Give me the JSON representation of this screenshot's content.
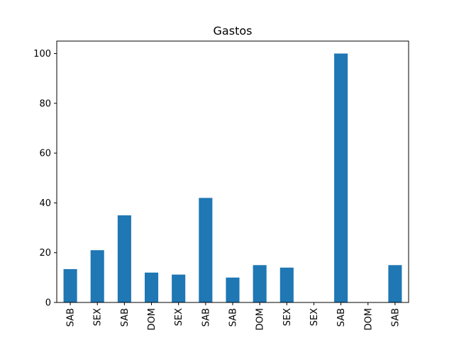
{
  "chart_data": {
    "type": "bar",
    "title": "Gastos",
    "xlabel": "",
    "ylabel": "",
    "categories": [
      "SAB",
      "SEX",
      "SAB",
      "DOM",
      "SEX",
      "SAB",
      "SAB",
      "DOM",
      "SEX",
      "SEX",
      "SAB",
      "DOM",
      "SAB"
    ],
    "values": [
      13.4,
      21.0,
      35.0,
      12.0,
      11.2,
      42.0,
      10.0,
      15.0,
      14.0,
      0,
      100.0,
      0,
      15.0
    ],
    "ylim": [
      0,
      105
    ],
    "yticks": [
      "0",
      "20",
      "40",
      "60",
      "80",
      "100"
    ],
    "grid": false,
    "bar_color": "#1f77b4"
  }
}
